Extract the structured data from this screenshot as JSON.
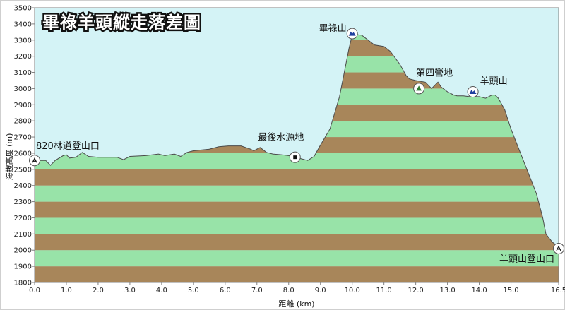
{
  "chart_data": {
    "type": "area",
    "title": "畢祿羊頭縱走落差圖",
    "xlabel": "距離  (km)",
    "ylabel": "海拔高度 (m)",
    "xlim": [
      0,
      16.5
    ],
    "ylim": [
      1800,
      3500
    ],
    "x_ticks": [
      0.0,
      1.0,
      2.0,
      3.0,
      4.0,
      5.0,
      6.0,
      7.0,
      8.0,
      9.0,
      10.0,
      11.0,
      12.0,
      13.0,
      14.0,
      15.0,
      16.5
    ],
    "x_tick_labels": [
      "0.0",
      "1.0",
      "2.0",
      "3.0",
      "4.0",
      "5.0",
      "6.0",
      "7.0",
      "8.0",
      "9.0",
      "10.0",
      "11.0",
      "12.0",
      "13.0",
      "14.0",
      "15.0",
      "16.5"
    ],
    "y_ticks": [
      1800,
      1900,
      2000,
      2100,
      2200,
      2300,
      2400,
      2500,
      2600,
      2700,
      2800,
      2900,
      3000,
      3100,
      3200,
      3300,
      3400,
      3500
    ],
    "y_tick_labels": [
      "1800",
      "1900",
      "2000",
      "2100",
      "2200",
      "2300",
      "2400",
      "2500",
      "2600",
      "2700",
      "2800",
      "2900",
      "3000",
      "3100",
      "3200",
      "3300",
      "3400",
      "3500"
    ],
    "band_colors": [
      "#a8865a",
      "#98e3a8"
    ],
    "sky_color": "#d4f3f6",
    "series": [
      {
        "x": [
          0.0,
          0.35,
          0.5,
          0.65,
          0.9,
          1.0,
          1.1,
          1.3,
          1.5,
          1.7,
          2.0,
          2.6,
          2.8,
          3.0,
          3.5,
          3.9,
          4.1,
          4.4,
          4.6,
          4.8,
          5.0,
          5.5,
          5.8,
          6.1,
          6.5,
          6.8,
          6.9,
          7.1,
          7.3,
          7.5,
          7.8,
          8.0,
          8.2,
          8.4,
          8.6,
          8.8,
          9.0,
          9.3,
          9.6,
          9.8,
          9.9,
          10.0,
          10.1,
          10.3,
          10.5,
          10.7,
          11.0,
          11.2,
          11.5,
          11.7,
          11.8,
          12.0,
          12.3,
          12.5,
          12.7,
          12.8,
          13.0,
          13.2,
          13.3,
          13.5,
          13.7,
          14.0,
          14.2,
          14.4,
          14.5,
          14.6,
          14.8,
          15.0,
          15.3,
          15.6,
          15.8,
          16.0,
          16.1,
          16.3,
          16.5
        ],
        "y": [
          2555,
          2555,
          2525,
          2555,
          2585,
          2590,
          2570,
          2575,
          2605,
          2580,
          2575,
          2575,
          2560,
          2580,
          2585,
          2595,
          2585,
          2595,
          2580,
          2605,
          2615,
          2625,
          2640,
          2645,
          2645,
          2625,
          2615,
          2635,
          2605,
          2595,
          2590,
          2585,
          2575,
          2565,
          2555,
          2580,
          2650,
          2750,
          2950,
          3150,
          3250,
          3330,
          3335,
          3330,
          3300,
          3270,
          3260,
          3230,
          3150,
          3080,
          3060,
          3050,
          3040,
          3000,
          3040,
          3010,
          2980,
          2960,
          2955,
          2955,
          2950,
          2950,
          2940,
          2960,
          2960,
          2940,
          2870,
          2750,
          2600,
          2450,
          2350,
          2200,
          2100,
          2050,
          2020
        ],
        "line_color": "#4a4a4a"
      }
    ],
    "annotations": [
      {
        "label": "820林道登山口",
        "x": 0.0,
        "y": 2555,
        "icon": "trailhead-icon"
      },
      {
        "label": "最後水源地",
        "x": 8.2,
        "y": 2575,
        "icon": "water-source-icon"
      },
      {
        "label": "畢祿山",
        "x": 10.0,
        "y": 3340,
        "icon": "summit-icon"
      },
      {
        "label": "第四營地",
        "x": 12.1,
        "y": 3000,
        "icon": "campsite-icon"
      },
      {
        "label": "羊頭山",
        "x": 13.8,
        "y": 2980,
        "icon": "summit-icon"
      },
      {
        "label": "羊頭山登山口",
        "x": 16.5,
        "y": 2010,
        "icon": "trailhead-icon"
      }
    ]
  }
}
